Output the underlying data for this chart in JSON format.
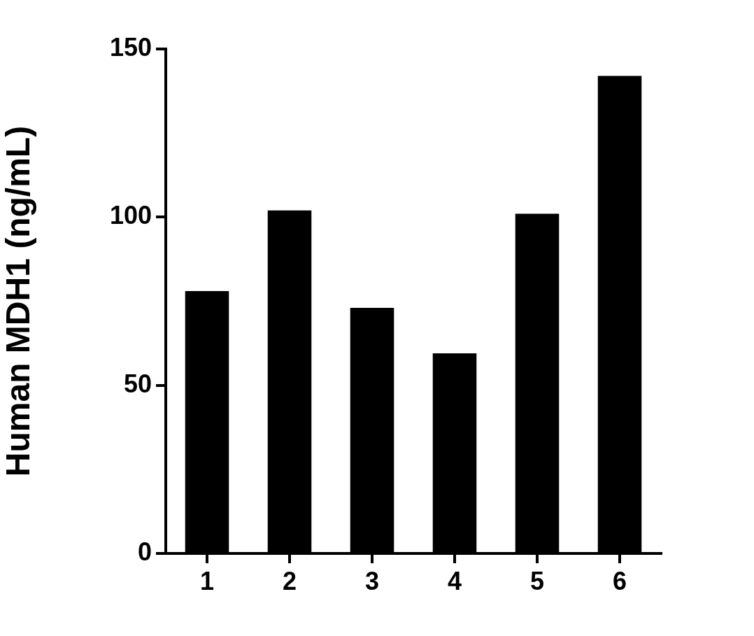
{
  "chart_data": {
    "type": "bar",
    "ylabel": "Human MDH1 (ng/mL)",
    "categories": [
      "1",
      "2",
      "3",
      "4",
      "5",
      "6"
    ],
    "values": [
      78,
      102,
      73,
      59.5,
      101,
      142
    ],
    "color": "#000000",
    "ylim": [
      0,
      150
    ],
    "yticks": [
      0,
      50,
      100,
      150
    ]
  }
}
